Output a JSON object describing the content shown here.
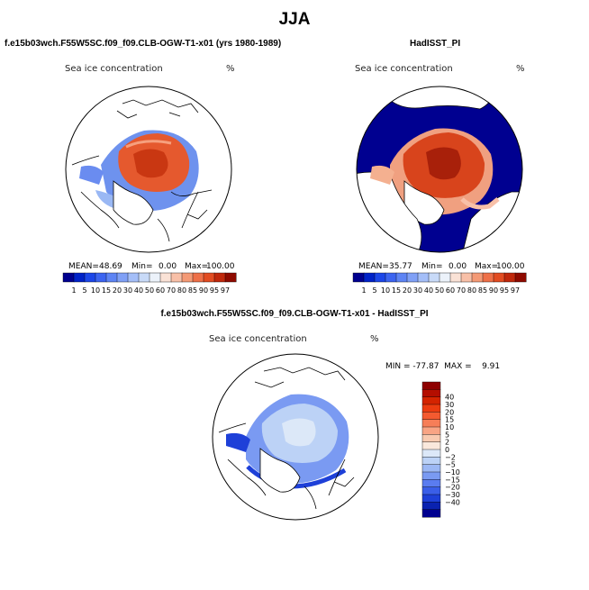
{
  "figure": {
    "title": "JJA",
    "panels": [
      {
        "title": "f.e15b03wch.F55W5SC.f09_f09.CLB-OGW-T1-x01 (yrs 1980-1989)",
        "variable": "Sea ice concentration",
        "units": "%",
        "stats": {
          "mean_label": "MEAN=",
          "mean": "48.69",
          "min_label": "Min=",
          "min": "0.00",
          "max_label": "Max=",
          "max": "100.00"
        }
      },
      {
        "title": "HadISST_PI",
        "variable": "Sea ice concentration",
        "units": "%",
        "stats": {
          "mean_label": "MEAN=",
          "mean": "35.77",
          "min_label": "Min=",
          "min": "0.00",
          "max_label": "Max=",
          "max": "100.00"
        }
      },
      {
        "title": "f.e15b03wch.F55W5SC.f09_f09.CLB-OGW-T1-x01 - HadISST_PI",
        "variable": "Sea ice concentration",
        "units": "%",
        "stats": {
          "text": "MIN = -77.87  MAX =    9.91"
        }
      }
    ]
  },
  "chart_data": [
    {
      "type": "heatmap",
      "projection": "north polar stereographic",
      "title": "f.e15b03wch.F55W5SC.f09_f09.CLB-OGW-T1-x01 (yrs 1980-1989)",
      "variable": "Sea ice concentration",
      "units": "%",
      "mean": 48.69,
      "min": 0.0,
      "max": 100.0,
      "colorbar": {
        "orientation": "horizontal",
        "levels": [
          "1",
          "5",
          "10",
          "15",
          "20",
          "30",
          "40",
          "50",
          "60",
          "70",
          "80",
          "85",
          "90",
          "95",
          "97"
        ],
        "colors": [
          "#00008f",
          "#0022c8",
          "#1c46e8",
          "#3c64f0",
          "#5e84f4",
          "#80a0f6",
          "#a4bef8",
          "#c8daf8",
          "#ecf2fa",
          "#fae2d6",
          "#f8c0a8",
          "#f49a76",
          "#ee7048",
          "#e24c22",
          "#c0280c",
          "#8e0a00"
        ]
      }
    },
    {
      "type": "heatmap",
      "projection": "north polar stereographic",
      "title": "HadISST_PI",
      "variable": "Sea ice concentration",
      "units": "%",
      "mean": 35.77,
      "min": 0.0,
      "max": 100.0,
      "colorbar": {
        "orientation": "horizontal",
        "levels": [
          "1",
          "5",
          "10",
          "15",
          "20",
          "30",
          "40",
          "50",
          "60",
          "70",
          "80",
          "85",
          "90",
          "95",
          "97"
        ],
        "colors": [
          "#00008f",
          "#0022c8",
          "#1c46e8",
          "#3c64f0",
          "#5e84f4",
          "#80a0f6",
          "#a4bef8",
          "#c8daf8",
          "#ecf2fa",
          "#fae2d6",
          "#f8c0a8",
          "#f49a76",
          "#ee7048",
          "#e24c22",
          "#c0280c",
          "#8e0a00"
        ]
      }
    },
    {
      "type": "heatmap",
      "projection": "north polar stereographic",
      "title": "f.e15b03wch.F55W5SC.f09_f09.CLB-OGW-T1-x01 - HadISST_PI",
      "variable": "Sea ice concentration",
      "units": "%",
      "min": -77.87,
      "max": 9.91,
      "colorbar": {
        "orientation": "vertical",
        "levels": [
          "40",
          "30",
          "20",
          "15",
          "10",
          "5",
          "2",
          "0",
          "−2",
          "−5",
          "−10",
          "−15",
          "−20",
          "−30",
          "−40"
        ],
        "colors": [
          "#8e0000",
          "#b40e00",
          "#d42400",
          "#ec3c10",
          "#f45a30",
          "#f67e58",
          "#f8a484",
          "#f8cab0",
          "#fae8dc",
          "#dce8f8",
          "#bcd2f6",
          "#9cb8f4",
          "#7a9af2",
          "#5a7cf0",
          "#3a5ee8",
          "#1e40d8",
          "#0a22b0",
          "#000090"
        ]
      }
    }
  ]
}
